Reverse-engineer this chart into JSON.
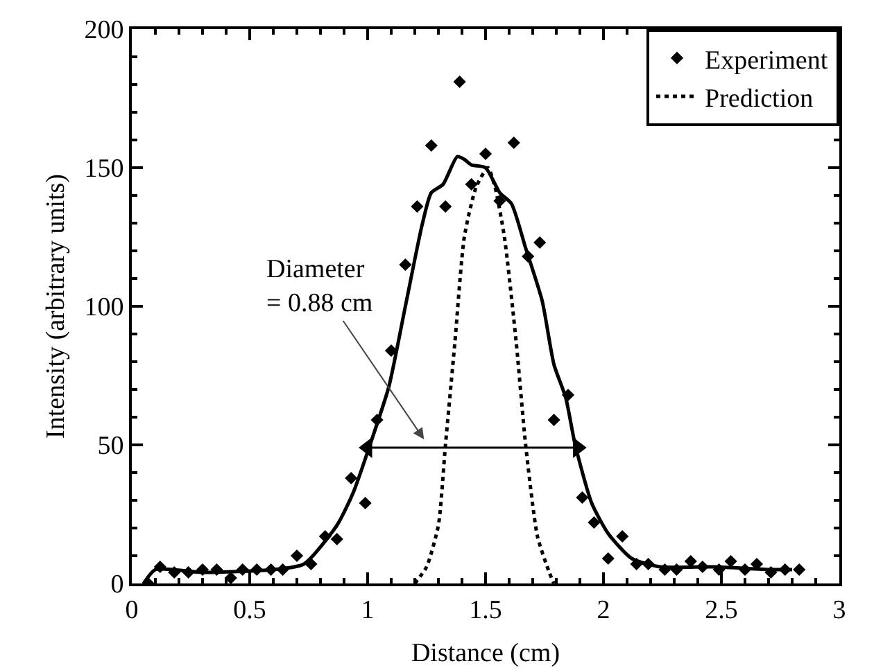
{
  "chart_data": {
    "type": "scatter",
    "xlabel": "Distance (cm)",
    "ylabel": "Intensity (arbitrary units)",
    "xlim": [
      0,
      3
    ],
    "xticks": [
      0,
      0.5,
      1,
      1.5,
      2,
      2.5,
      3
    ],
    "ylim": [
      0,
      200
    ],
    "yticks": [
      0,
      50,
      100,
      150,
      200
    ],
    "grid": false,
    "legend": "top right",
    "annotations": [
      "Diameter\n= 0.88 cm"
    ],
    "series": [
      {
        "name": "Experiment",
        "marker": "diamond",
        "color": "#000000",
        "x": [
          0.07,
          0.12,
          0.18,
          0.24,
          0.3,
          0.36,
          0.42,
          0.47,
          0.53,
          0.59,
          0.64,
          0.7,
          0.76,
          0.82,
          0.87,
          0.93,
          0.99,
          1.04,
          1.1,
          1.16,
          1.21,
          1.27,
          1.33,
          1.39,
          1.44,
          1.5,
          1.56,
          1.62,
          1.68,
          1.73,
          1.79,
          1.85,
          1.91,
          1.96,
          2.02,
          2.08,
          2.14,
          2.19,
          2.26,
          2.31,
          2.37,
          2.42,
          2.49,
          2.54,
          2.6,
          2.65,
          2.71,
          2.77,
          2.83
        ],
        "values": [
          0,
          6,
          4,
          4,
          5,
          5,
          2,
          5,
          5,
          5,
          5,
          10,
          7,
          17,
          16,
          38,
          29,
          59,
          84,
          115,
          136,
          158,
          136,
          181,
          144,
          155,
          138,
          159,
          118,
          123,
          59,
          68,
          31,
          22,
          9,
          17,
          7,
          7,
          5,
          5,
          8,
          6,
          5,
          8,
          5,
          7,
          4,
          5,
          5
        ]
      },
      {
        "type": "line",
        "line_style": "solid",
        "color": "#000000",
        "x": [
          0.05,
          0.1,
          0.3,
          0.6,
          0.73,
          0.87,
          0.94,
          1.01,
          1.09,
          1.16,
          1.23,
          1.27,
          1.32,
          1.38,
          1.41,
          1.44,
          1.5,
          1.56,
          1.61,
          1.67,
          1.74,
          1.79,
          1.84,
          1.88,
          1.95,
          2.02,
          2.12,
          2.24,
          2.47,
          2.71,
          2.8
        ],
        "values": [
          0,
          5,
          4,
          5,
          7,
          21,
          33,
          50,
          71,
          100,
          129,
          141,
          144,
          154,
          153,
          151,
          150,
          141,
          137,
          121,
          102,
          79,
          67,
          50,
          29,
          18,
          9,
          6,
          6,
          5,
          5
        ]
      },
      {
        "name": "Prediction",
        "type": "line",
        "line_style": "dotted",
        "color": "#000000",
        "x": [
          1.2,
          1.25,
          1.3,
          1.33,
          1.37,
          1.41,
          1.46,
          1.51,
          1.54,
          1.58,
          1.63,
          1.67,
          1.72,
          1.77,
          1.79
        ],
        "values": [
          0,
          6,
          21,
          50,
          87,
          125,
          143,
          150,
          143,
          125,
          87,
          50,
          17,
          4,
          0
        ]
      },
      {
        "type": "line",
        "line_style": "solid",
        "marker": "triangle",
        "color": "#000000",
        "x": [
          1.0,
          1.89
        ],
        "values": [
          49,
          49
        ]
      }
    ]
  }
}
